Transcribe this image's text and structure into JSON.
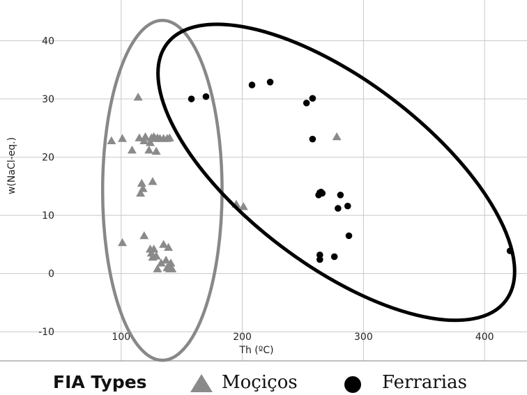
{
  "chart_data": {
    "type": "scatter",
    "xlabel": "Th (ºC)",
    "ylabel": "w(NaCl-eq.)",
    "xlim": [
      0,
      435
    ],
    "ylim": [
      -15,
      47
    ],
    "x_ticks": [
      100,
      200,
      300,
      400
    ],
    "y_ticks": [
      -10,
      0,
      10,
      20,
      30,
      40
    ],
    "grid": true,
    "legend": {
      "title": "FIA Types",
      "position": "bottom"
    },
    "series": [
      {
        "name": "Moçiços",
        "marker": "triangle",
        "color": "#8a8a8a",
        "points": [
          [
            92,
            22.8
          ],
          [
            101,
            23.2
          ],
          [
            109,
            21.2
          ],
          [
            114,
            30.3
          ],
          [
            115,
            23.3
          ],
          [
            116,
            13.8
          ],
          [
            117,
            15.5
          ],
          [
            118,
            14.6
          ],
          [
            119,
            22.8
          ],
          [
            120,
            23.5
          ],
          [
            123,
            21.2
          ],
          [
            124,
            22.5
          ],
          [
            125,
            23.3
          ],
          [
            126,
            15.8
          ],
          [
            127,
            23.5
          ],
          [
            128,
            23.2
          ],
          [
            129,
            21
          ],
          [
            130,
            23.3
          ],
          [
            132,
            23.2
          ],
          [
            135,
            23.2
          ],
          [
            138,
            23.2
          ],
          [
            140,
            23.3
          ],
          [
            101,
            5.3
          ],
          [
            119,
            6.5
          ],
          [
            124,
            4.2
          ],
          [
            125,
            3.5
          ],
          [
            126,
            2.8
          ],
          [
            127,
            4.2
          ],
          [
            129,
            3.0
          ],
          [
            130,
            0.8
          ],
          [
            133,
            1.8
          ],
          [
            135,
            5.0
          ],
          [
            137,
            2.3
          ],
          [
            138,
            1.0
          ],
          [
            139,
            4.5
          ],
          [
            140,
            0.8
          ],
          [
            141,
            1.8
          ],
          [
            142,
            0.8
          ],
          [
            195,
            11.9
          ],
          [
            201,
            11.5
          ],
          [
            278,
            23.5
          ]
        ]
      },
      {
        "name": "Ferrarias",
        "marker": "circle",
        "color": "#000000",
        "points": [
          [
            158,
            30.0
          ],
          [
            170,
            30.4
          ],
          [
            208,
            32.4
          ],
          [
            223,
            32.9
          ],
          [
            253,
            29.3
          ],
          [
            258,
            30.1
          ],
          [
            258,
            23.1
          ],
          [
            263,
            13.5
          ],
          [
            264,
            13.9
          ],
          [
            265,
            14.0
          ],
          [
            266,
            13.8
          ],
          [
            264,
            3.2
          ],
          [
            264,
            2.4
          ],
          [
            276,
            2.9
          ],
          [
            279,
            11.2
          ],
          [
            281,
            13.5
          ],
          [
            287,
            11.6
          ],
          [
            288,
            6.5
          ],
          [
            421,
            3.9
          ]
        ]
      }
    ],
    "ellipses": [
      {
        "series": "Moçiços",
        "center": [
          134,
          14.3
        ],
        "semi_axes": [
          49.3,
          29.2
        ],
        "angle_deg": 0,
        "color": "#888888"
      },
      {
        "series": "Ferrarias",
        "center": [
          277.6,
          17.4
        ],
        "semi_axes": [
          175.5,
          15.85
        ],
        "angle_deg": -37.2,
        "color": "#000000"
      }
    ]
  }
}
